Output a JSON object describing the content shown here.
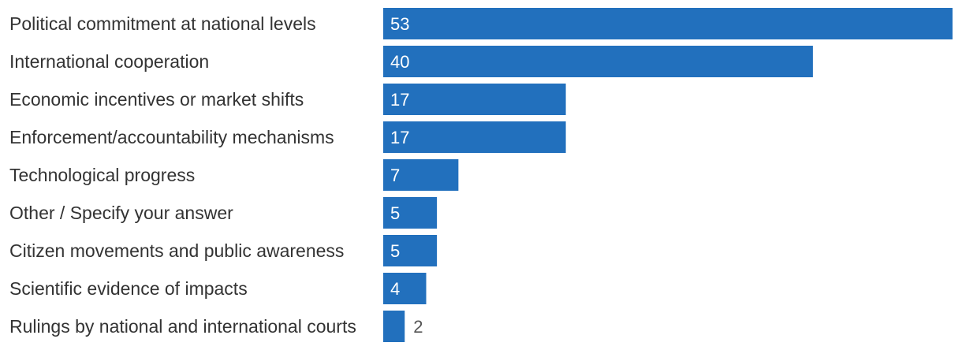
{
  "colors": {
    "bar": "#2270BD",
    "label_text": "#333333",
    "value_text_inside": "#FFFFFF",
    "value_text_outside": "#555555",
    "background": "#FFFFFF"
  },
  "chart_data": {
    "type": "bar",
    "orientation": "horizontal",
    "title": "",
    "xlabel": "",
    "ylabel": "",
    "grid": false,
    "legend": "none",
    "xlim": [
      0,
      53
    ],
    "categories": [
      "Political commitment at national levels",
      "International cooperation",
      "Economic incentives or market shifts",
      "Enforcement/accountability mechanisms",
      "Technological progress",
      "Other / Specify your answer",
      "Citizen movements and public awareness",
      "Scientific evidence of impacts",
      "Rulings by national and international courts"
    ],
    "values": [
      53,
      40,
      17,
      17,
      7,
      5,
      5,
      4,
      2
    ]
  }
}
